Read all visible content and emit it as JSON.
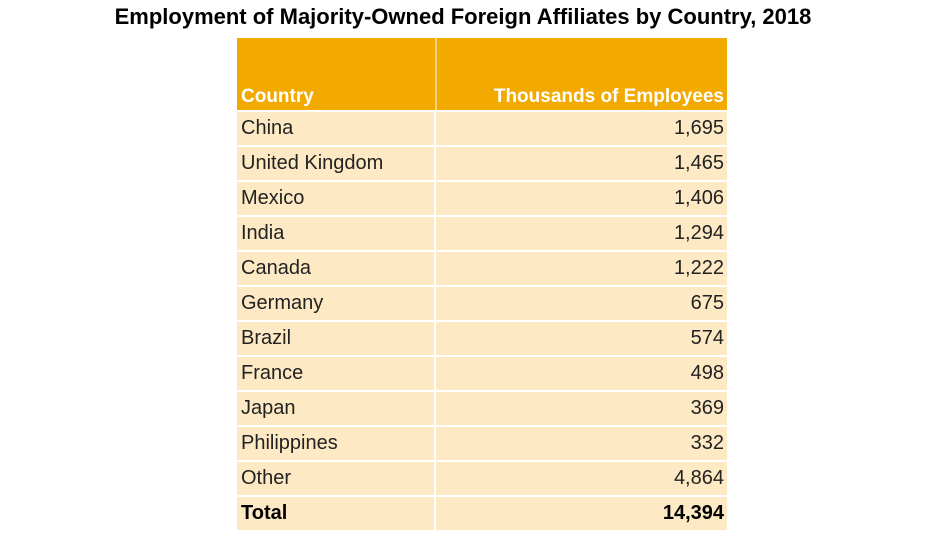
{
  "title": "Employment of Majority-Owned Foreign Affiliates by Country, 2018",
  "table": {
    "header": [
      "Country",
      "Thousands of Employees"
    ],
    "rows": [
      [
        "China",
        "1,695"
      ],
      [
        "United Kingdom",
        "1,465"
      ],
      [
        "Mexico",
        "1,406"
      ],
      [
        "India",
        "1,294"
      ],
      [
        "Canada",
        "1,222"
      ],
      [
        "Germany",
        "675"
      ],
      [
        "Brazil",
        "574"
      ],
      [
        "France",
        "498"
      ],
      [
        "Japan",
        "369"
      ],
      [
        "Philippines",
        "332"
      ],
      [
        "Other",
        "4,864"
      ]
    ],
    "total": [
      "Total",
      "14,394"
    ]
  }
}
